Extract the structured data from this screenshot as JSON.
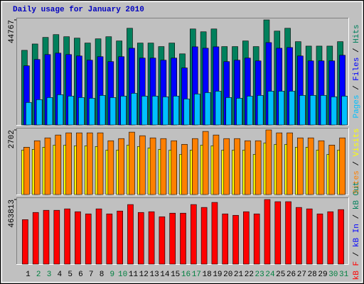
{
  "chart_data": {
    "type": "bar",
    "title": "Daily usage for January 2010",
    "legend_separator": " / ",
    "categories": [
      "1",
      "2",
      "3",
      "4",
      "5",
      "6",
      "7",
      "8",
      "9",
      "10",
      "11",
      "12",
      "13",
      "14",
      "15",
      "16",
      "17",
      "18",
      "19",
      "20",
      "21",
      "22",
      "23",
      "24",
      "25",
      "26",
      "27",
      "28",
      "29",
      "30",
      "31"
    ],
    "category_colors": [
      "#000000",
      "#008040",
      "#008040",
      "#000000",
      "#000000",
      "#000000",
      "#000000",
      "#000000",
      "#008040",
      "#008040",
      "#000000",
      "#000000",
      "#000000",
      "#000000",
      "#000000",
      "#008040",
      "#008040",
      "#000000",
      "#000000",
      "#000000",
      "#000000",
      "#000000",
      "#008040",
      "#008040",
      "#000000",
      "#000000",
      "#000000",
      "#000000",
      "#000000",
      "#008040",
      "#008040"
    ],
    "panels": [
      {
        "ylim": [
          0,
          44767
        ],
        "yticks": [
          44767
        ],
        "series": [
          {
            "name": "Hits",
            "color": "#00805c",
            "values": [
              31800,
              34500,
              37300,
              38500,
              37600,
              37000,
              34900,
              36700,
              37600,
              35800,
              41200,
              34900,
              34900,
              33400,
              34900,
              30300,
              40900,
              39700,
              40900,
              33400,
              33400,
              35800,
              33400,
              44767,
              40000,
              41200,
              35500,
              33600,
              33600,
              33600,
              35500
            ]
          },
          {
            "name": "Files",
            "color": "#0000ff",
            "values": [
              25200,
              27900,
              30000,
              30600,
              30000,
              29400,
              27600,
              29100,
              27000,
              29100,
              32700,
              28500,
              28500,
              27600,
              28500,
              24300,
              33300,
              32700,
              33300,
              27000,
              27600,
              28500,
              27300,
              35100,
              32700,
              33000,
              29400,
              27300,
              27300,
              27300,
              29700
            ]
          },
          {
            "name": "Pages",
            "color": "#00c0ff",
            "values": [
              9600,
              10800,
              11700,
              12900,
              12300,
              11700,
              11400,
              12600,
              11700,
              12300,
              13500,
              12300,
              12300,
              12000,
              12300,
              11100,
              13200,
              13800,
              14400,
              11700,
              11400,
              12300,
              12600,
              14400,
              14400,
              14400,
              12600,
              12600,
              12600,
              12000,
              12300
            ]
          }
        ]
      },
      {
        "ylim": [
          0,
          2702
        ],
        "yticks": [
          2702
        ],
        "series": [
          {
            "name": "Visits",
            "color": "#ffff00",
            "values": [
              1860,
              1890,
              1980,
              2070,
              2070,
              2040,
              2040,
              2010,
              1860,
              1860,
              2070,
              2010,
              1950,
              1890,
              1860,
              1680,
              1860,
              2070,
              2040,
              1860,
              1860,
              1860,
              1680,
              2160,
              2100,
              2100,
              1980,
              1980,
              1860,
              1680,
              1860
            ]
          },
          {
            "name": "Sites",
            "color": "#ff8000",
            "values": [
              1980,
              2250,
              2370,
              2490,
              2580,
              2580,
              2580,
              2580,
              2250,
              2340,
              2610,
              2460,
              2370,
              2340,
              2250,
              2100,
              2340,
              2640,
              2490,
              2340,
              2340,
              2250,
              2250,
              2702,
              2580,
              2580,
              2370,
              2370,
              2250,
              2070,
              2370
            ]
          }
        ]
      },
      {
        "ylim": [
          0,
          463813
        ],
        "yticks": [
          463813
        ],
        "series": [
          {
            "name": "kB Out",
            "color": "#00805c"
          },
          {
            "name": "kB In",
            "color": "#0000ff"
          },
          {
            "name": "kB F",
            "color": "#ff0000",
            "values": [
              319500,
              371000,
              386500,
              386500,
              396800,
              376200,
              360700,
              396800,
              360700,
              381300,
              427700,
              371000,
              376200,
              340100,
              365900,
              365900,
              427700,
              407100,
              443200,
              360700,
              350400,
              376200,
              360700,
              463813,
              448300,
              448300,
              407100,
              396800,
              360700,
              376200,
              391600
            ]
          }
        ]
      }
    ]
  }
}
